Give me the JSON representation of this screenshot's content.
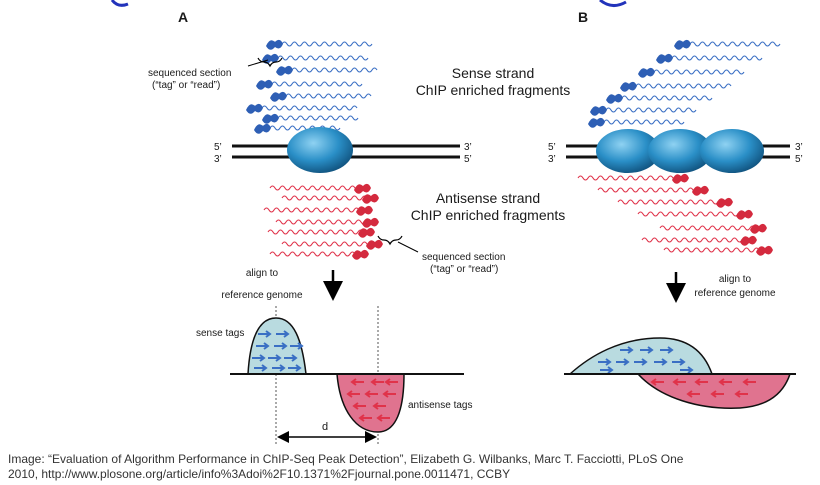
{
  "panel_a": {
    "letter": "A",
    "top_tag_label_line1": "sequenced section",
    "top_tag_label_line2": "(“tag” or  “read”)",
    "prime_5": "5’",
    "prime_3": "3’",
    "bottom_tag_label_line1": "sequenced section",
    "bottom_tag_label_line2": "(“tag” or  “read”)",
    "align_line1": "align to",
    "align_line2": "reference genome",
    "sense_tags": "sense tags",
    "antisense_tags": "antisense tags",
    "distance": "d"
  },
  "panel_b": {
    "letter": "B",
    "prime_5": "5’",
    "prime_3": "3’",
    "align_line1": "align to",
    "align_line2": "reference genome"
  },
  "center": {
    "sense_line1": "Sense strand",
    "sense_line2": "ChIP enriched fragments",
    "antisense_line1": "Antisense strand",
    "antisense_line2": "ChIP enriched fragments"
  },
  "caption": {
    "line1": "Image: “Evaluation of Algorithm Performance in ChIP-Seq Peak Detection”, Elizabeth G. Wilbanks, Marc T. Facciotti, PLoS One",
    "line2": "2010, http://www.plosone.org/article/info%3Adoi%2F10.1371%2Fjournal.pone.0011471, CCBY"
  },
  "colors": {
    "sense_wave": "#3a6fc4",
    "sense_tag": "#2e5fb5",
    "antisense_wave": "#e0334a",
    "antisense_tag": "#d42a3e",
    "nucleosome": "#2a8fc7",
    "sense_fill": "#b9dbe0",
    "antisense_fill": "#e0738f",
    "title_blue": "#2233bb"
  }
}
